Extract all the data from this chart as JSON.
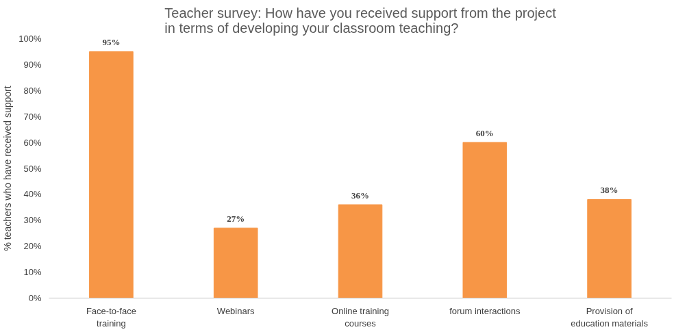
{
  "chart_data": {
    "type": "bar",
    "title": "Teacher survey: How have you received support from the project in terms of developing your classroom teaching?",
    "ylabel": "% teachers who have received support",
    "categories": [
      "Face-to-face training",
      "Webinars",
      "Online training courses",
      "forum interactions",
      "Provision of education materials"
    ],
    "values": [
      95,
      27,
      36,
      60,
      38
    ],
    "value_labels": [
      "95%",
      "27%",
      "36%",
      "60%",
      "38%"
    ],
    "color": "#f79646",
    "ylim": [
      0,
      100
    ],
    "yticks": [
      {
        "value": 0,
        "label": "0%"
      },
      {
        "value": 10,
        "label": "10%"
      },
      {
        "value": 20,
        "label": "20%"
      },
      {
        "value": 30,
        "label": "30%"
      },
      {
        "value": 40,
        "label": "40%"
      },
      {
        "value": 50,
        "label": "50%"
      },
      {
        "value": 60,
        "label": "60%"
      },
      {
        "value": 70,
        "label": "70%"
      },
      {
        "value": 80,
        "label": "80%"
      },
      {
        "value": 90,
        "label": "90%"
      },
      {
        "value": 100,
        "label": "100%"
      }
    ],
    "grid": false
  }
}
